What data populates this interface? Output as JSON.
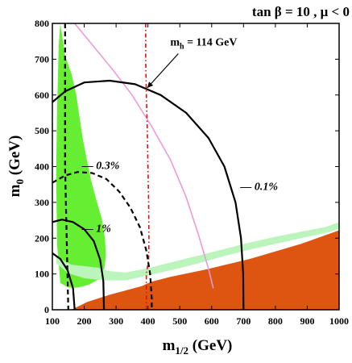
{
  "chart_data": {
    "type": "contour",
    "title": "tan β = 10 ,  μ < 0",
    "xlabel": "m",
    "xlabel_sub": "1/2",
    "xlabel_unit": " (GeV)",
    "ylabel": "m",
    "ylabel_sub": "0",
    "ylabel_unit": " (GeV)",
    "xlim": [
      100,
      1000
    ],
    "ylim": [
      0,
      800
    ],
    "x_ticks": [
      100,
      200,
      300,
      400,
      500,
      600,
      700,
      800,
      900,
      1000
    ],
    "y_ticks": [
      0,
      100,
      200,
      300,
      400,
      500,
      600,
      700,
      800
    ],
    "grid": false,
    "colors": {
      "charged_lsp_region": "#dd5511",
      "green_region": "#66ee33",
      "light_green_band": "#bbf5bb",
      "pink_line": "#ee99dd",
      "higgs_line": "#dd1111",
      "contour": "#000000"
    },
    "regions": [
      {
        "id": "charged-lsp",
        "fill": "#dd5511",
        "points": [
          [
            160,
            0
          ],
          [
            1000,
            0
          ],
          [
            1000,
            222
          ],
          [
            880,
            184
          ],
          [
            720,
            142
          ],
          [
            580,
            112
          ],
          [
            470,
            92
          ],
          [
            410,
            78
          ],
          [
            380,
            66
          ],
          [
            280,
            42
          ],
          [
            210,
            22
          ],
          [
            160,
            0
          ]
        ]
      },
      {
        "id": "green-excluded",
        "fill": "#66ee33",
        "points": [
          [
            125,
            800
          ],
          [
            140,
            710
          ],
          [
            160,
            660
          ],
          [
            175,
            600
          ],
          [
            185,
            540
          ],
          [
            195,
            480
          ],
          [
            208,
            420
          ],
          [
            222,
            360
          ],
          [
            240,
            300
          ],
          [
            255,
            255
          ],
          [
            265,
            200
          ],
          [
            268,
            150
          ],
          [
            262,
            110
          ],
          [
            245,
            85
          ],
          [
            215,
            70
          ],
          [
            180,
            62
          ],
          [
            150,
            62
          ],
          [
            125,
            75
          ],
          [
            115,
            180
          ],
          [
            112,
            380
          ],
          [
            115,
            560
          ],
          [
            120,
            740
          ],
          [
            125,
            800
          ]
        ]
      },
      {
        "id": "coannihilation-band",
        "fill": "#bbf5bb",
        "points": [
          [
            112,
            130
          ],
          [
            150,
            102
          ],
          [
            200,
            88
          ],
          [
            260,
            82
          ],
          [
            330,
            82
          ],
          [
            400,
            96
          ],
          [
            480,
            112
          ],
          [
            560,
            130
          ],
          [
            640,
            150
          ],
          [
            720,
            168
          ],
          [
            800,
            184
          ],
          [
            880,
            200
          ],
          [
            960,
            215
          ],
          [
            1000,
            226
          ],
          [
            1000,
            245
          ],
          [
            960,
            232
          ],
          [
            880,
            218
          ],
          [
            800,
            204
          ],
          [
            720,
            188
          ],
          [
            640,
            170
          ],
          [
            560,
            152
          ],
          [
            480,
            134
          ],
          [
            400,
            116
          ],
          [
            330,
            104
          ],
          [
            280,
            108
          ],
          [
            240,
            118
          ],
          [
            200,
            122
          ],
          [
            160,
            126
          ],
          [
            130,
            140
          ],
          [
            112,
            150
          ]
        ]
      }
    ],
    "lines": [
      {
        "id": "pink-line",
        "stroke": "#ee99dd",
        "style": "solid",
        "points": [
          [
            170,
            800
          ],
          [
            230,
            735
          ],
          [
            290,
            670
          ],
          [
            350,
            600
          ],
          [
            410,
            515
          ],
          [
            470,
            420
          ],
          [
            520,
            315
          ],
          [
            560,
            205
          ],
          [
            590,
            115
          ],
          [
            605,
            60
          ]
        ]
      },
      {
        "id": "higgs-114",
        "stroke": "#dd1111",
        "style": "dashdot",
        "points": [
          [
            393,
            800
          ],
          [
            393,
            700
          ],
          [
            395,
            600
          ],
          [
            398,
            500
          ],
          [
            400,
            400
          ],
          [
            402,
            300
          ],
          [
            403,
            200
          ],
          [
            402,
            140
          ],
          [
            395,
            100
          ],
          [
            395,
            0
          ]
        ]
      },
      {
        "id": "vertical-dashed",
        "stroke": "#000000",
        "style": "dashed",
        "points": [
          [
            140,
            800
          ],
          [
            140,
            400
          ],
          [
            150,
            0
          ]
        ]
      },
      {
        "id": "contour-0.1pct",
        "stroke": "#000000",
        "style": "solid",
        "points": [
          [
            100,
            580
          ],
          [
            140,
            610
          ],
          [
            200,
            635
          ],
          [
            280,
            640
          ],
          [
            360,
            630
          ],
          [
            440,
            600
          ],
          [
            520,
            550
          ],
          [
            590,
            480
          ],
          [
            640,
            400
          ],
          [
            675,
            300
          ],
          [
            692,
            200
          ],
          [
            699,
            100
          ],
          [
            700,
            0
          ]
        ]
      },
      {
        "id": "contour-0.3pct",
        "stroke": "#000000",
        "style": "dashed",
        "points": [
          [
            100,
            355
          ],
          [
            140,
            375
          ],
          [
            180,
            385
          ],
          [
            225,
            382
          ],
          [
            270,
            365
          ],
          [
            310,
            330
          ],
          [
            345,
            285
          ],
          [
            375,
            230
          ],
          [
            395,
            165
          ],
          [
            407,
            100
          ],
          [
            412,
            30
          ],
          [
            412,
            0
          ]
        ]
      },
      {
        "id": "contour-1pct",
        "stroke": "#000000",
        "style": "solid",
        "points": [
          [
            100,
            245
          ],
          [
            130,
            252
          ],
          [
            165,
            245
          ],
          [
            200,
            225
          ],
          [
            230,
            192
          ],
          [
            250,
            140
          ],
          [
            260,
            80
          ],
          [
            262,
            0
          ]
        ]
      },
      {
        "id": "contour-small",
        "stroke": "#000000",
        "style": "solid",
        "points": [
          [
            100,
            158
          ],
          [
            125,
            142
          ],
          [
            148,
            110
          ],
          [
            165,
            60
          ],
          [
            170,
            0
          ]
        ]
      }
    ],
    "annotations": [
      {
        "id": "label-0.1pct",
        "text": "— 0.1%",
        "x": 690,
        "y": 335
      },
      {
        "id": "label-0.3pct",
        "text": "— 0.3%",
        "x": 193,
        "y": 393
      },
      {
        "id": "label-1pct",
        "text": "— 1%",
        "x": 193,
        "y": 218
      },
      {
        "id": "label-higgs",
        "text": "m",
        "sub": "h",
        "tail": " = 114 GeV",
        "x": 470,
        "y": 738
      }
    ]
  }
}
